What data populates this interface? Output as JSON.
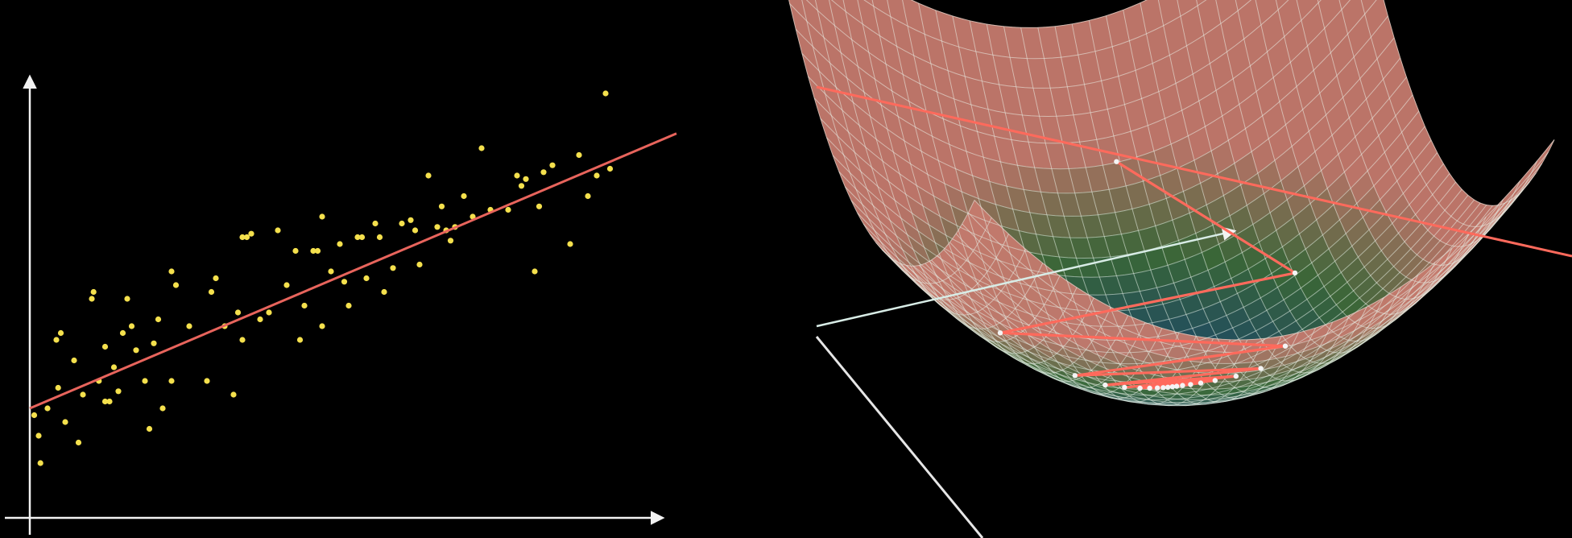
{
  "colors": {
    "background": "#000000",
    "axis": "#f2f2f2",
    "points": "#f4e04d",
    "fit_line": "#e8645c",
    "descent_path": "#ff6a5c",
    "surface_low": "#1d4a6e",
    "surface_mid": "#3c6b3a",
    "surface_high": "#c57a6e",
    "mesh": "#e6efe6"
  },
  "left_panel": {
    "kind": "scatter-with-regression-line",
    "axis_labels": [],
    "fit_line": {
      "intercept": 1.6,
      "slope": 0.55
    },
    "points": [
      {
        "x": 0.05,
        "y": 1.5
      },
      {
        "x": 0.1,
        "y": 1.2
      },
      {
        "x": 0.12,
        "y": 0.8
      },
      {
        "x": 0.2,
        "y": 1.6
      },
      {
        "x": 0.3,
        "y": 2.6
      },
      {
        "x": 0.32,
        "y": 1.9
      },
      {
        "x": 0.4,
        "y": 1.4
      },
      {
        "x": 0.5,
        "y": 2.3
      },
      {
        "x": 0.55,
        "y": 1.1
      },
      {
        "x": 0.6,
        "y": 1.8
      },
      {
        "x": 0.7,
        "y": 3.2
      },
      {
        "x": 0.72,
        "y": 3.3
      },
      {
        "x": 0.78,
        "y": 2.0
      },
      {
        "x": 0.85,
        "y": 2.5
      },
      {
        "x": 0.9,
        "y": 1.7
      },
      {
        "x": 0.95,
        "y": 2.2
      },
      {
        "x": 1.0,
        "y": 1.85
      },
      {
        "x": 1.05,
        "y": 2.7
      },
      {
        "x": 1.1,
        "y": 3.2
      },
      {
        "x": 1.15,
        "y": 2.8
      },
      {
        "x": 1.2,
        "y": 2.45
      },
      {
        "x": 1.3,
        "y": 2.0
      },
      {
        "x": 1.35,
        "y": 1.3
      },
      {
        "x": 1.4,
        "y": 2.55
      },
      {
        "x": 1.45,
        "y": 2.9
      },
      {
        "x": 1.5,
        "y": 1.6
      },
      {
        "x": 1.6,
        "y": 3.6
      },
      {
        "x": 1.65,
        "y": 3.4
      },
      {
        "x": 1.8,
        "y": 2.8
      },
      {
        "x": 2.0,
        "y": 2.0
      },
      {
        "x": 2.05,
        "y": 3.3
      },
      {
        "x": 2.1,
        "y": 3.5
      },
      {
        "x": 2.2,
        "y": 2.8
      },
      {
        "x": 2.3,
        "y": 1.8
      },
      {
        "x": 2.35,
        "y": 3.0
      },
      {
        "x": 2.4,
        "y": 4.1
      },
      {
        "x": 2.45,
        "y": 4.1
      },
      {
        "x": 2.5,
        "y": 4.15
      },
      {
        "x": 2.6,
        "y": 2.9
      },
      {
        "x": 2.7,
        "y": 3.0
      },
      {
        "x": 2.8,
        "y": 4.2
      },
      {
        "x": 2.9,
        "y": 3.4
      },
      {
        "x": 3.0,
        "y": 3.9
      },
      {
        "x": 3.05,
        "y": 2.6
      },
      {
        "x": 3.1,
        "y": 3.1
      },
      {
        "x": 3.2,
        "y": 3.9
      },
      {
        "x": 3.25,
        "y": 3.9
      },
      {
        "x": 3.3,
        "y": 4.4
      },
      {
        "x": 3.4,
        "y": 3.6
      },
      {
        "x": 3.5,
        "y": 4.0
      },
      {
        "x": 3.55,
        "y": 3.45
      },
      {
        "x": 3.6,
        "y": 3.1
      },
      {
        "x": 3.7,
        "y": 4.1
      },
      {
        "x": 3.75,
        "y": 4.1
      },
      {
        "x": 3.8,
        "y": 3.5
      },
      {
        "x": 3.9,
        "y": 4.3
      },
      {
        "x": 3.95,
        "y": 4.1
      },
      {
        "x": 4.1,
        "y": 3.65
      },
      {
        "x": 4.2,
        "y": 4.3
      },
      {
        "x": 4.3,
        "y": 4.35
      },
      {
        "x": 4.35,
        "y": 4.2
      },
      {
        "x": 4.4,
        "y": 3.7
      },
      {
        "x": 4.5,
        "y": 5.0
      },
      {
        "x": 4.6,
        "y": 4.25
      },
      {
        "x": 4.65,
        "y": 4.55
      },
      {
        "x": 4.7,
        "y": 4.2
      },
      {
        "x": 4.75,
        "y": 4.05
      },
      {
        "x": 4.8,
        "y": 4.25
      },
      {
        "x": 4.9,
        "y": 4.7
      },
      {
        "x": 5.0,
        "y": 4.4
      },
      {
        "x": 5.1,
        "y": 5.4
      },
      {
        "x": 5.2,
        "y": 4.5
      },
      {
        "x": 5.4,
        "y": 4.5
      },
      {
        "x": 5.5,
        "y": 5.0
      },
      {
        "x": 5.55,
        "y": 4.85
      },
      {
        "x": 5.6,
        "y": 4.95
      },
      {
        "x": 5.7,
        "y": 3.6
      },
      {
        "x": 5.75,
        "y": 4.55
      },
      {
        "x": 5.8,
        "y": 5.05
      },
      {
        "x": 5.9,
        "y": 5.15
      },
      {
        "x": 6.1,
        "y": 4.0
      },
      {
        "x": 6.2,
        "y": 5.3
      },
      {
        "x": 6.3,
        "y": 4.7
      },
      {
        "x": 6.4,
        "y": 5.0
      },
      {
        "x": 6.5,
        "y": 6.2
      },
      {
        "x": 6.55,
        "y": 5.1
      },
      {
        "x": 0.35,
        "y": 2.7
      },
      {
        "x": 0.85,
        "y": 1.7
      },
      {
        "x": 1.6,
        "y": 2.0
      },
      {
        "x": 2.4,
        "y": 2.6
      },
      {
        "x": 3.3,
        "y": 2.8
      },
      {
        "x": 4.0,
        "y": 3.3
      }
    ]
  },
  "right_panel": {
    "kind": "loss-surface-gradient-descent",
    "labels": [],
    "descent_path": [
      {
        "u": 0.8,
        "v": 4.6
      },
      {
        "u": 4.0,
        "v": 1.2
      },
      {
        "u": -4.0,
        "v": 0.3
      },
      {
        "u": 3.0,
        "v": -0.6
      },
      {
        "u": -2.4,
        "v": -0.5
      },
      {
        "u": 2.2,
        "v": -1.0
      },
      {
        "u": -1.7,
        "v": -0.7
      },
      {
        "u": 1.6,
        "v": -0.9
      },
      {
        "u": -1.2,
        "v": -0.7
      },
      {
        "u": 1.1,
        "v": -0.8
      },
      {
        "u": -0.8,
        "v": -0.7
      },
      {
        "u": 0.75,
        "v": -0.75
      },
      {
        "u": -0.55,
        "v": -0.7
      },
      {
        "u": 0.5,
        "v": -0.72
      },
      {
        "u": -0.35,
        "v": -0.7
      },
      {
        "u": 0.3,
        "v": -0.7
      },
      {
        "u": -0.2,
        "v": -0.7
      },
      {
        "u": 0.15,
        "v": -0.7
      },
      {
        "u": -0.08,
        "v": -0.7
      },
      {
        "u": 0.04,
        "v": -0.7
      }
    ]
  }
}
